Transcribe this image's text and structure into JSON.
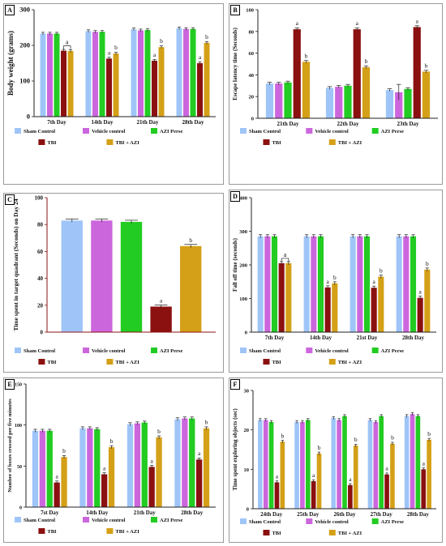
{
  "colors": {
    "sham": "#9fc5f8",
    "vehicle": "#cc66dd",
    "azi": "#22cc22",
    "tbi": "#8b1010",
    "tbi_azi": "#d4a017",
    "frame": "#9a9a9a"
  },
  "chart_data": [
    {
      "id": "A",
      "type": "bar",
      "ylabel": "Body weight (grams)",
      "ylim": [
        0,
        300
      ],
      "yticks": [
        0,
        100,
        200,
        300
      ],
      "categories": [
        "7th Day",
        "14th Day",
        "21th Day",
        "28th Day"
      ],
      "series": [
        {
          "name": "Sham Control",
          "values": [
            233,
            240,
            245,
            248
          ]
        },
        {
          "name": "Vehicle control",
          "values": [
            233,
            238,
            242,
            246
          ]
        },
        {
          "name": "AZI Perse",
          "values": [
            233,
            238,
            243,
            246
          ]
        },
        {
          "name": "TBI",
          "values": [
            185,
            163,
            157,
            150
          ]
        },
        {
          "name": "TBI + AZI",
          "values": [
            184,
            177,
            195,
            207
          ]
        }
      ],
      "annotations": [
        {
          "text": "a",
          "group": 0,
          "series": 3,
          "bracket": true
        },
        {
          "text": "a",
          "group": 1,
          "series": 3
        },
        {
          "text": "b",
          "group": 1,
          "series": 4
        },
        {
          "text": "a",
          "group": 2,
          "series": 3
        },
        {
          "text": "b",
          "group": 2,
          "series": 4
        },
        {
          "text": "a",
          "group": 3,
          "series": 3
        },
        {
          "text": "b",
          "group": 3,
          "series": 4
        }
      ]
    },
    {
      "id": "B",
      "type": "bar",
      "ylabel": "Escape latency time (Seconds)",
      "ylim": [
        0,
        100
      ],
      "yticks": [
        0,
        20,
        40,
        60,
        80,
        100
      ],
      "categories": [
        "21th Day",
        "22th Day",
        "23th Day"
      ],
      "series": [
        {
          "name": "Sham Control",
          "values": [
            32,
            28,
            26
          ]
        },
        {
          "name": "Vehicle control",
          "values": [
            32,
            29,
            24
          ]
        },
        {
          "name": "AZI Perse",
          "values": [
            33,
            30,
            27
          ]
        },
        {
          "name": "TBI",
          "values": [
            82,
            82,
            84
          ]
        },
        {
          "name": "TBI + AZI",
          "values": [
            52,
            47,
            43
          ]
        }
      ],
      "annotations": [
        {
          "text": "a",
          "group": 0,
          "series": 3
        },
        {
          "text": "b",
          "group": 0,
          "series": 4
        },
        {
          "text": "a",
          "group": 1,
          "series": 3
        },
        {
          "text": "b",
          "group": 1,
          "series": 4
        },
        {
          "text": "a",
          "group": 2,
          "series": 3
        },
        {
          "text": "b",
          "group": 2,
          "series": 4
        }
      ]
    },
    {
      "id": "C",
      "type": "bar",
      "ylabel": "Time spent in target quadrant (Seconds) on Day 24",
      "ylim": [
        0,
        100
      ],
      "yticks": [
        0,
        20,
        40,
        60,
        80,
        100
      ],
      "categories": [
        ""
      ],
      "series": [
        {
          "name": "Sham Control",
          "values": [
            83
          ]
        },
        {
          "name": "Vehicle control",
          "values": [
            83
          ]
        },
        {
          "name": "AZI Perse",
          "values": [
            82
          ]
        },
        {
          "name": "TBI",
          "values": [
            19
          ]
        },
        {
          "name": "TBI + AZI",
          "values": [
            64
          ]
        }
      ],
      "annotations": [
        {
          "text": "a",
          "group": 0,
          "series": 3
        },
        {
          "text": "b",
          "group": 0,
          "series": 4
        }
      ]
    },
    {
      "id": "D",
      "type": "bar",
      "ylabel": "Fall off time (seconds)",
      "ylim": [
        0,
        400
      ],
      "yticks": [
        0,
        100,
        200,
        300,
        400
      ],
      "categories": [
        "7th Day",
        "14th Day",
        "21st Day",
        "28th Day"
      ],
      "series": [
        {
          "name": "Sham Control",
          "values": [
            285,
            285,
            285,
            285
          ]
        },
        {
          "name": "Vehicle control",
          "values": [
            285,
            285,
            285,
            285
          ]
        },
        {
          "name": "AZI Perse",
          "values": [
            285,
            285,
            285,
            285
          ]
        },
        {
          "name": "TBI",
          "values": [
            205,
            133,
            132,
            102
          ]
        },
        {
          "name": "TBI + AZI",
          "values": [
            205,
            145,
            165,
            186
          ]
        }
      ],
      "annotations": [
        {
          "text": "a",
          "group": 0,
          "series": 3,
          "bracket": true
        },
        {
          "text": "a",
          "group": 1,
          "series": 3
        },
        {
          "text": "b",
          "group": 1,
          "series": 4
        },
        {
          "text": "a",
          "group": 2,
          "series": 3
        },
        {
          "text": "b",
          "group": 2,
          "series": 4
        },
        {
          "text": "a",
          "group": 3,
          "series": 3
        },
        {
          "text": "b",
          "group": 3,
          "series": 4
        }
      ]
    },
    {
      "id": "E",
      "type": "bar",
      "ylabel": "Number of boxes crossed per five minutes",
      "ylim": [
        0,
        150
      ],
      "yticks": [
        0,
        50,
        100,
        150
      ],
      "categories": [
        "7st Day",
        "14th Day",
        "21th Day",
        "28th Day"
      ],
      "series": [
        {
          "name": "Sham Control",
          "values": [
            93,
            96,
            101,
            107
          ]
        },
        {
          "name": "Vehicle control",
          "values": [
            93,
            96,
            102,
            108
          ]
        },
        {
          "name": "AZI Perse",
          "values": [
            93,
            95,
            103,
            108
          ]
        },
        {
          "name": "TBI",
          "values": [
            30,
            40,
            49,
            58
          ]
        },
        {
          "name": "TBI + AZI",
          "values": [
            61,
            73,
            85,
            96
          ]
        }
      ],
      "annotations": [
        {
          "text": "a",
          "group": 0,
          "series": 3
        },
        {
          "text": "b",
          "group": 0,
          "series": 4
        },
        {
          "text": "a",
          "group": 1,
          "series": 3
        },
        {
          "text": "b",
          "group": 1,
          "series": 4
        },
        {
          "text": "a",
          "group": 2,
          "series": 3
        },
        {
          "text": "b",
          "group": 2,
          "series": 4
        },
        {
          "text": "a",
          "group": 3,
          "series": 3
        },
        {
          "text": "b",
          "group": 3,
          "series": 4
        }
      ]
    },
    {
      "id": "F",
      "type": "bar",
      "ylabel": "Time spent exploring objects (sec)",
      "ylim": [
        0,
        30
      ],
      "yticks": [
        0,
        10,
        20,
        30
      ],
      "categories": [
        "24th Day",
        "25th Day",
        "26th Day",
        "27th Day",
        "28th Day"
      ],
      "series": [
        {
          "name": "Sham Control",
          "values": [
            22.5,
            22,
            23,
            22.5,
            23.5
          ]
        },
        {
          "name": "Vehicle control",
          "values": [
            22.5,
            22,
            22.5,
            22,
            24
          ]
        },
        {
          "name": "AZI Perse",
          "values": [
            22,
            22.5,
            23.5,
            23.5,
            23.5
          ]
        },
        {
          "name": "TBI",
          "values": [
            6.7,
            7,
            6,
            8.7,
            10
          ]
        },
        {
          "name": "TBI + AZI",
          "values": [
            17,
            14,
            16,
            16.5,
            17.5
          ]
        }
      ],
      "annotations": [
        {
          "text": "a",
          "group": 0,
          "series": 3
        },
        {
          "text": "b",
          "group": 0,
          "series": 4
        },
        {
          "text": "a",
          "group": 1,
          "series": 3
        },
        {
          "text": "b",
          "group": 1,
          "series": 4
        },
        {
          "text": "a",
          "group": 2,
          "series": 3
        },
        {
          "text": "b",
          "group": 2,
          "series": 4
        },
        {
          "text": "a",
          "group": 3,
          "series": 3
        },
        {
          "text": "b",
          "group": 3,
          "series": 4
        },
        {
          "text": "a",
          "group": 4,
          "series": 3
        },
        {
          "text": "b",
          "group": 4,
          "series": 4
        }
      ]
    }
  ]
}
